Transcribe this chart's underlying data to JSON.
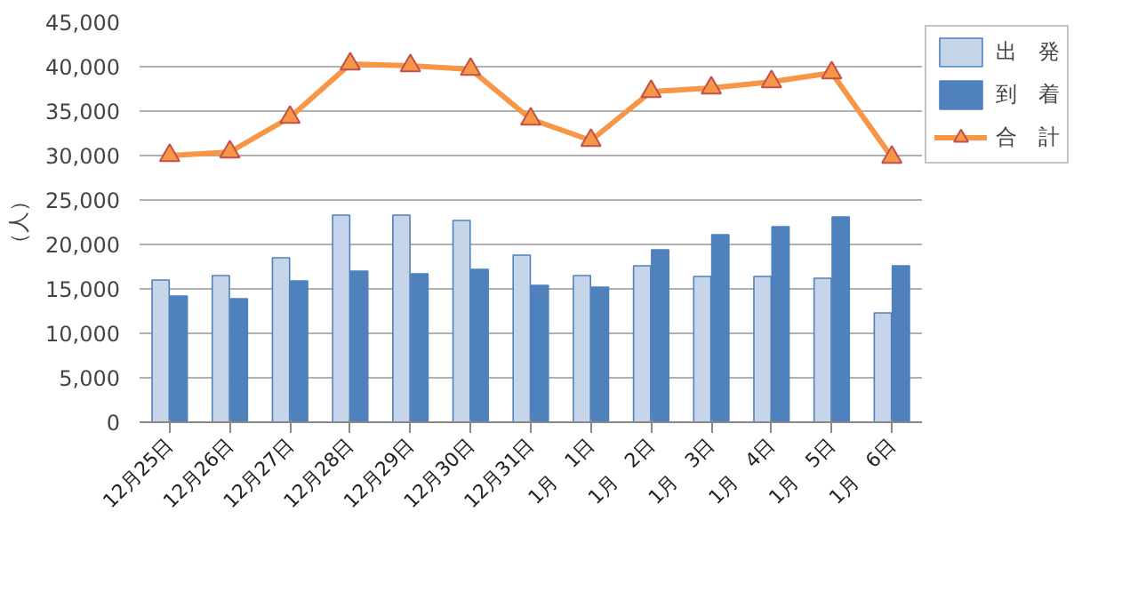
{
  "chart_data": {
    "type": "bar",
    "ylabel": "（人）",
    "categories": [
      "12月25日",
      "12月26日",
      "12月27日",
      "12月28日",
      "12月29日",
      "12月30日",
      "12月31日",
      "1月　1日",
      "1月　2日",
      "1月　3日",
      "1月　4日",
      "1月　5日",
      "1月　6日"
    ],
    "series": [
      {
        "name": "出　発",
        "color": "#c6d5ea",
        "values": [
          16000,
          16500,
          18500,
          23300,
          23300,
          22700,
          18800,
          16500,
          17600,
          16400,
          16400,
          16200,
          12300
        ]
      },
      {
        "name": "到　着",
        "color": "#4f81bd",
        "values": [
          14200,
          13900,
          15900,
          17000,
          16700,
          17200,
          15400,
          15200,
          19400,
          21100,
          22000,
          23100,
          17600
        ]
      },
      {
        "name": "合　計",
        "type": "line",
        "color": "#f79646",
        "marker": "triangle",
        "values": [
          30000,
          30400,
          34300,
          40300,
          40100,
          39700,
          34100,
          31700,
          37200,
          37600,
          38300,
          39300,
          29800
        ]
      }
    ],
    "ylim": [
      0,
      45000
    ],
    "yticks": [
      {
        "value": 0,
        "label": "0"
      },
      {
        "value": 5000,
        "label": "5,000"
      },
      {
        "value": 10000,
        "label": "10,000"
      },
      {
        "value": 15000,
        "label": "15,000"
      },
      {
        "value": 20000,
        "label": "20,000"
      },
      {
        "value": 25000,
        "label": "25,000"
      },
      {
        "value": 30000,
        "label": "30,000"
      },
      {
        "value": 35000,
        "label": "35,000"
      },
      {
        "value": 40000,
        "label": "40,000"
      },
      {
        "value": 45000,
        "label": "45,000"
      }
    ],
    "grid": "y",
    "legend": "right"
  }
}
